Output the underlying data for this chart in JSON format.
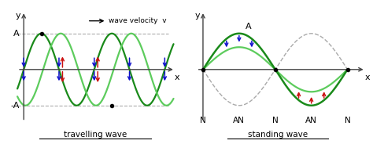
{
  "fig_width": 4.74,
  "fig_height": 1.84,
  "dpi": 100,
  "bg_color": "#ffffff",
  "wave_dark": "#1a8a1a",
  "wave_light": "#5dcc5d",
  "axis_color": "#444444",
  "arrow_blue": "#1111cc",
  "arrow_red": "#cc1111",
  "dot_color": "#000000",
  "dash_color": "#aaaaaa",
  "A_value": 1.0,
  "title_left": "travelling wave",
  "title_right": "standing wave",
  "vel_text": "wave velocity  v"
}
